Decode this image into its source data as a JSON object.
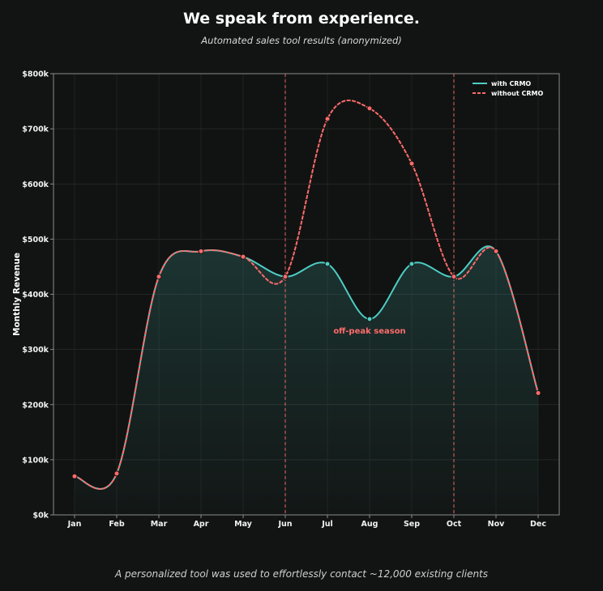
{
  "title": "We speak from experience.",
  "subtitle": "Automated sales tool results (anonymized)",
  "footer": "A personalized tool was used to effortlessly contact ~12,000 existing clients",
  "colors": {
    "background": "#121413",
    "with": "#4ecdc4",
    "without": "#ff6b6b"
  },
  "chart_data": {
    "type": "line",
    "categories": [
      "Jan",
      "Feb",
      "Mar",
      "Apr",
      "May",
      "Jun",
      "Jul",
      "Aug",
      "Sep",
      "Oct",
      "Nov",
      "Dec"
    ],
    "series": [
      {
        "name": "with CRMO",
        "style": "solid",
        "color": "#4ecdc4",
        "values": [
          70000,
          75000,
          432000,
          478000,
          468000,
          432000,
          455000,
          355000,
          455000,
          432000,
          478000,
          221000
        ]
      },
      {
        "name": "without CRMO",
        "style": "dashed",
        "color": "#ff6b6b",
        "values": [
          70000,
          75000,
          432000,
          478000,
          468000,
          432000,
          718000,
          737000,
          637000,
          432000,
          478000,
          221000
        ]
      }
    ],
    "ylabel": "Monthly Revenue",
    "xlabel": "",
    "ylim": [
      0,
      800000
    ],
    "yticks": [
      0,
      100000,
      200000,
      300000,
      400000,
      500000,
      600000,
      700000,
      800000
    ],
    "ytick_labels": [
      "$0k",
      "$100k",
      "$200k",
      "$300k",
      "$400k",
      "$500k",
      "$600k",
      "$700k",
      "$800k"
    ],
    "vlines": [
      "Jun",
      "Oct"
    ],
    "annotation": {
      "text": "off-peak season",
      "x": "Aug",
      "y": 335000
    },
    "legend": "top-right",
    "grid": true
  }
}
